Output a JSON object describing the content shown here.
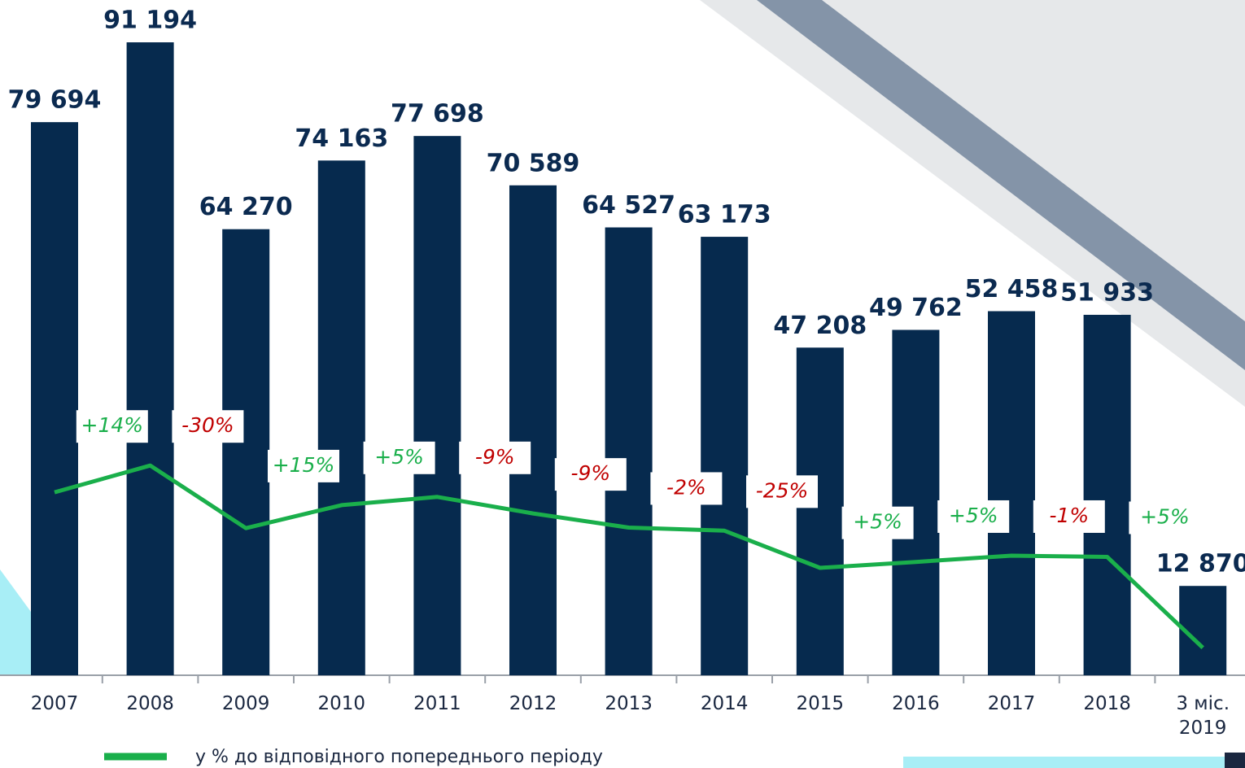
{
  "chart_data": {
    "type": "bar",
    "categories": [
      "2007",
      "2008",
      "2009",
      "2010",
      "2011",
      "2012",
      "2013",
      "2014",
      "2015",
      "2016",
      "2017",
      "2018",
      "3 міс. 2019"
    ],
    "series": [
      {
        "color": "#062a4e",
        "values": [
          79694,
          91194,
          64270,
          74163,
          77698,
          70589,
          64527,
          63173,
          47208,
          49762,
          52458,
          51933,
          12870
        ],
        "value_labels": [
          "79 694",
          "91 194",
          "64 270",
          "74 163",
          "77 698",
          "70 589",
          "64 527",
          "63 173",
          "47 208",
          "49 762",
          "52 458",
          "51 933",
          "12 870"
        ]
      },
      {
        "name": "у % до відповідного попереднього періоду",
        "color": "#1aaf4b",
        "negative_color": "#c00000",
        "values": [
          null,
          14,
          -30,
          15,
          5,
          -9,
          -9,
          -2,
          -25,
          5,
          5,
          -1,
          5
        ],
        "value_labels": [
          null,
          "+14%",
          "-30%",
          "+15%",
          "+5%",
          "-9%",
          "-9%",
          "-2%",
          "-25%",
          "+5%",
          "+5%",
          "-1%",
          "+5%"
        ]
      }
    ]
  }
}
